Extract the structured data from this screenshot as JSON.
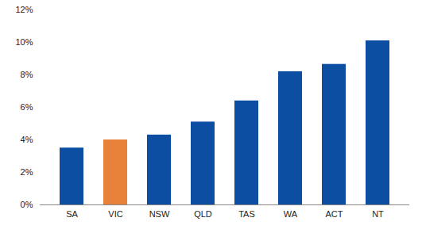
{
  "chart_data": {
    "type": "bar",
    "categories": [
      "SA",
      "VIC",
      "NSW",
      "QLD",
      "TAS",
      "WA",
      "ACT",
      "NT"
    ],
    "values": [
      3.5,
      4.0,
      4.3,
      5.1,
      6.4,
      8.2,
      8.65,
      10.1
    ],
    "colors": [
      "#0b4ea2",
      "#e8823a",
      "#0b4ea2",
      "#0b4ea2",
      "#0b4ea2",
      "#0b4ea2",
      "#0b4ea2",
      "#0b4ea2"
    ],
    "ylim": [
      0,
      12
    ],
    "yticks": [
      {
        "value": 0,
        "label": "0%"
      },
      {
        "value": 2,
        "label": "2%"
      },
      {
        "value": 4,
        "label": "4%"
      },
      {
        "value": 6,
        "label": "6%"
      },
      {
        "value": 8,
        "label": "8%"
      },
      {
        "value": 10,
        "label": "10%"
      },
      {
        "value": 12,
        "label": "12%"
      }
    ],
    "grid": false
  }
}
